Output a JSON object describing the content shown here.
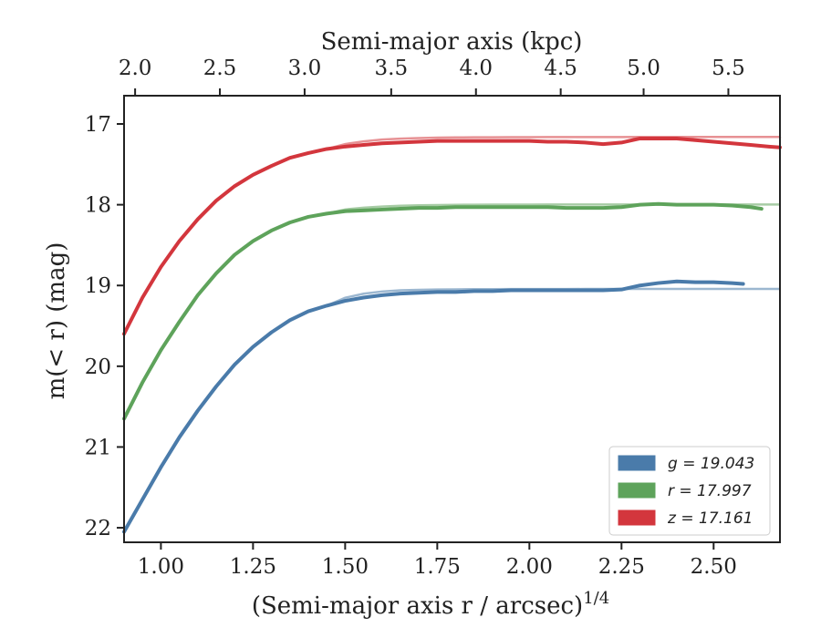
{
  "chart_data": {
    "type": "line",
    "xlabel": "(Semi-major axis r / arcsec)",
    "xlabel_exponent": "1/4",
    "ylabel": "m(< r) (mag)",
    "top_xlabel": "Semi-major axis (kpc)",
    "xlim": [
      0.9,
      2.68
    ],
    "ylim": [
      22.18,
      16.65
    ],
    "y_inverted": true,
    "x_ticks": [
      "1.00",
      "1.25",
      "1.50",
      "1.75",
      "2.00",
      "2.25",
      "2.50"
    ],
    "y_ticks": [
      "17",
      "18",
      "19",
      "20",
      "21",
      "22"
    ],
    "top_ticks": [
      "2.0",
      "2.5",
      "3.0",
      "3.5",
      "4.0",
      "4.5",
      "5.0",
      "5.5"
    ],
    "top_tick_positions_x": [
      0.93,
      1.16,
      1.39,
      1.625,
      1.855,
      2.085,
      2.31,
      2.54
    ],
    "grid": false,
    "legend_position": "lower-right",
    "legend_entries": [
      "g = 19.043",
      "r = 17.997",
      "z = 17.161"
    ],
    "series": [
      {
        "name": "g = 19.043",
        "color": "#4a7baa",
        "values_x": [
          0.9,
          0.95,
          1.0,
          1.05,
          1.1,
          1.15,
          1.2,
          1.25,
          1.3,
          1.35,
          1.4,
          1.45,
          1.5,
          1.55,
          1.6,
          1.65,
          1.7,
          1.75,
          1.8,
          1.85,
          1.9,
          1.95,
          2.0,
          2.05,
          2.1,
          2.15,
          2.2,
          2.25,
          2.3,
          2.35,
          2.4,
          2.45,
          2.5,
          2.55,
          2.58
        ],
        "values_y": [
          22.05,
          21.65,
          21.25,
          20.88,
          20.55,
          20.25,
          19.98,
          19.76,
          19.58,
          19.43,
          19.32,
          19.25,
          19.19,
          19.15,
          19.12,
          19.1,
          19.09,
          19.08,
          19.08,
          19.07,
          19.07,
          19.06,
          19.06,
          19.06,
          19.06,
          19.06,
          19.06,
          19.05,
          19.0,
          18.97,
          18.95,
          18.96,
          18.96,
          18.97,
          18.98
        ],
        "model_y_asymptote": 19.043
      },
      {
        "name": "r = 17.997",
        "color": "#5ea35b",
        "values_x": [
          0.9,
          0.95,
          1.0,
          1.05,
          1.1,
          1.15,
          1.2,
          1.25,
          1.3,
          1.35,
          1.4,
          1.45,
          1.5,
          1.55,
          1.6,
          1.65,
          1.7,
          1.75,
          1.8,
          1.85,
          1.9,
          1.95,
          2.0,
          2.05,
          2.1,
          2.15,
          2.2,
          2.25,
          2.3,
          2.35,
          2.4,
          2.45,
          2.5,
          2.55,
          2.6,
          2.63
        ],
        "values_y": [
          20.65,
          20.2,
          19.8,
          19.45,
          19.12,
          18.85,
          18.62,
          18.45,
          18.32,
          18.22,
          18.15,
          18.11,
          18.08,
          18.07,
          18.06,
          18.05,
          18.04,
          18.04,
          18.03,
          18.03,
          18.03,
          18.03,
          18.03,
          18.03,
          18.04,
          18.04,
          18.04,
          18.03,
          18.0,
          17.99,
          18.0,
          18.0,
          18.0,
          18.01,
          18.03,
          18.05
        ],
        "model_y_asymptote": 17.997
      },
      {
        "name": "z = 17.161",
        "color": "#d3363d",
        "values_x": [
          0.9,
          0.95,
          1.0,
          1.05,
          1.1,
          1.15,
          1.2,
          1.25,
          1.3,
          1.35,
          1.4,
          1.45,
          1.5,
          1.55,
          1.6,
          1.65,
          1.7,
          1.75,
          1.8,
          1.85,
          1.9,
          1.95,
          2.0,
          2.05,
          2.1,
          2.15,
          2.2,
          2.25,
          2.3,
          2.35,
          2.4,
          2.45,
          2.5,
          2.55,
          2.6,
          2.65,
          2.68
        ],
        "values_y": [
          19.6,
          19.15,
          18.77,
          18.45,
          18.18,
          17.95,
          17.77,
          17.63,
          17.52,
          17.42,
          17.36,
          17.31,
          17.28,
          17.26,
          17.24,
          17.23,
          17.22,
          17.21,
          17.21,
          17.21,
          17.21,
          17.21,
          17.21,
          17.22,
          17.22,
          17.23,
          17.25,
          17.23,
          17.18,
          17.18,
          17.18,
          17.2,
          17.22,
          17.24,
          17.26,
          17.28,
          17.29
        ],
        "model_y_asymptote": 17.161
      }
    ]
  }
}
